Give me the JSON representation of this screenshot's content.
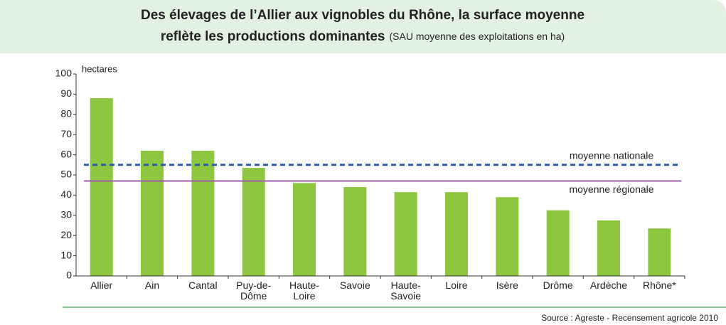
{
  "chart_data": {
    "type": "bar",
    "title": [
      "Des élevages de l’Allier aux vignobles du Rhône, la surface moyenne",
      "reflète les productions dominantes"
    ],
    "subtitle": "(SAU moyenne des exploitations en ha)",
    "y_label": "hectares",
    "categories": [
      "Allier",
      "Ain",
      "Cantal",
      "Puy-de-\nDôme",
      "Haute-\nLoire",
      "Savoie",
      "Haute-\nSavoie",
      "Loire",
      "Isère",
      "Drôme",
      "Ardèche",
      "Rhône*"
    ],
    "values": [
      88,
      62,
      62,
      53.5,
      46,
      44,
      41.5,
      41.5,
      39,
      32.5,
      27.5,
      23.5
    ],
    "color": "#8dc63f",
    "ylim": [
      0,
      100
    ],
    "yticks": [
      0,
      10,
      20,
      30,
      40,
      50,
      60,
      70,
      80,
      90,
      100
    ],
    "reference_lines": [
      {
        "name": "moyenne nationale",
        "value": 55,
        "color": "#2e5c9e",
        "style": "dashed"
      },
      {
        "name": "moyenne régionale",
        "value": 47,
        "color": "#a05ca8",
        "style": "solid"
      }
    ],
    "source": "Source : Agreste - Recensement agricole 2010"
  }
}
